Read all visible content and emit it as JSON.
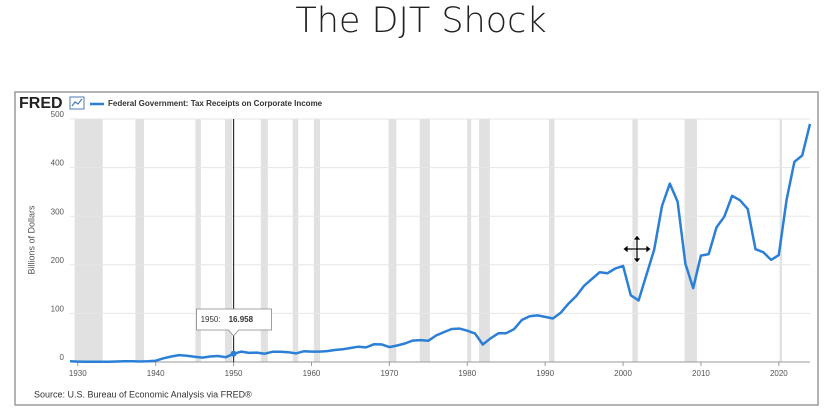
{
  "slide_title": "The DJT Shock",
  "chart_data": {
    "type": "line",
    "logo": "FRED",
    "y_label": "Billions of Dollars",
    "source": "Source: U.S. Bureau of Economic Analysis via FRED®",
    "xlim": [
      1929,
      2024
    ],
    "ylim": [
      0,
      500
    ],
    "xticks": [
      1930,
      1940,
      1950,
      1960,
      1970,
      1980,
      1990,
      2000,
      2010,
      2020
    ],
    "yticks": [
      0,
      100,
      200,
      300,
      400,
      500
    ],
    "grid": true,
    "recessions": [
      [
        1929.6,
        1933.2
      ],
      [
        1937.4,
        1938.5
      ],
      [
        1945.1,
        1945.8
      ],
      [
        1948.9,
        1949.8
      ],
      [
        1953.5,
        1954.4
      ],
      [
        1957.6,
        1958.3
      ],
      [
        1960.3,
        1961.1
      ],
      [
        1969.9,
        1970.9
      ],
      [
        1973.9,
        1975.2
      ],
      [
        1980.0,
        1980.5
      ],
      [
        1981.5,
        1982.9
      ],
      [
        1990.5,
        1991.2
      ],
      [
        2001.2,
        2001.9
      ],
      [
        2007.9,
        2009.5
      ],
      [
        2020.1,
        2020.4
      ]
    ],
    "x": [
      1929,
      1930,
      1931,
      1932,
      1933,
      1934,
      1935,
      1936,
      1937,
      1938,
      1939,
      1940,
      1941,
      1942,
      1943,
      1944,
      1945,
      1946,
      1947,
      1948,
      1949,
      1950,
      1951,
      1952,
      1953,
      1954,
      1955,
      1956,
      1957,
      1958,
      1959,
      1960,
      1961,
      1962,
      1963,
      1964,
      1965,
      1966,
      1967,
      1968,
      1969,
      1970,
      1971,
      1972,
      1973,
      1974,
      1975,
      1976,
      1977,
      1978,
      1979,
      1980,
      1981,
      1982,
      1983,
      1984,
      1985,
      1986,
      1987,
      1988,
      1989,
      1990,
      1991,
      1992,
      1993,
      1994,
      1995,
      1996,
      1997,
      1998,
      1999,
      2000,
      2001,
      2002,
      2003,
      2004,
      2005,
      2006,
      2007,
      2008,
      2009,
      2010,
      2011,
      2012,
      2013,
      2014,
      2015,
      2016,
      2017,
      2018,
      2019,
      2020,
      2021,
      2022,
      2023,
      2024
    ],
    "series": [
      {
        "name": "Federal Government: Tax Receipts on Corporate Income",
        "color": "#2c7fd6",
        "values": [
          1.4,
          0.8,
          0.5,
          0.4,
          0.5,
          0.7,
          1.0,
          1.4,
          1.5,
          1.0,
          1.4,
          2.6,
          7.6,
          11.4,
          14.1,
          12.9,
          10.7,
          9.1,
          11.3,
          12.4,
          9.8,
          16.958,
          21.5,
          18.8,
          19.4,
          17.0,
          21.0,
          20.9,
          20.1,
          17.7,
          22.1,
          21.4,
          21.5,
          22.5,
          24.6,
          26.1,
          28.9,
          31.4,
          30.0,
          36.4,
          36.2,
          30.7,
          34.0,
          38.0,
          44.1,
          45.0,
          43.6,
          54.6,
          61.6,
          68.0,
          68.7,
          64.4,
          58.4,
          36.1,
          48.8,
          59.0,
          59.3,
          67.4,
          86.5,
          94.1,
          95.8,
          92.9,
          89.6,
          101.3,
          120.2,
          135.9,
          156.8,
          171.0,
          184.8,
          182.8,
          192.3,
          197.7,
          137.3,
          126.7,
          179.0,
          231.3,
          321.0,
          367.0,
          330.0,
          202.0,
          152.0,
          219.0,
          222.0,
          277.0,
          299.0,
          342.0,
          333.0,
          315.0,
          232.0,
          226.0,
          210.0,
          220.0,
          334.0,
          412.0,
          425.0,
          490.0
        ]
      }
    ],
    "tooltip": {
      "x_label": "1950:",
      "index": 21
    }
  }
}
